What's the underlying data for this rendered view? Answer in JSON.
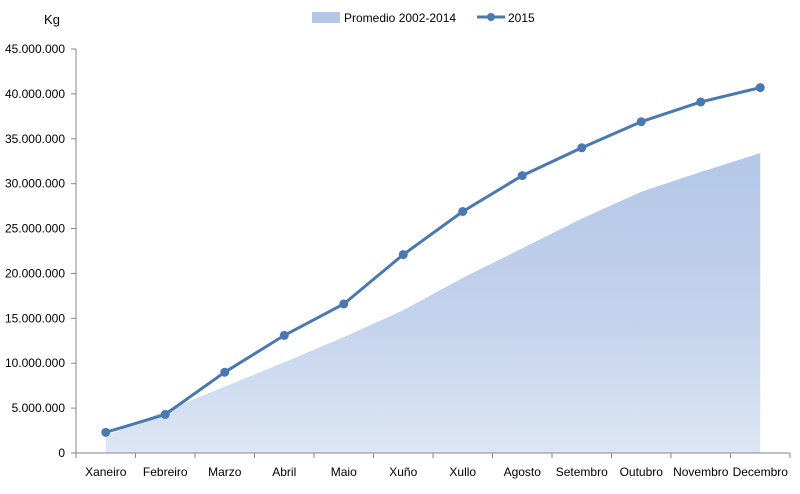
{
  "chart_data": {
    "type": "area",
    "ylabel": "Kg",
    "categories": [
      "Xaneiro",
      "Febreiro",
      "Marzo",
      "Abril",
      "Maio",
      "Xuño",
      "Xullo",
      "Agosto",
      "Setembro",
      "Outubro",
      "Novembro",
      "Decembro"
    ],
    "ylim": [
      0,
      45000000
    ],
    "yticks": [
      0,
      5000000,
      10000000,
      15000000,
      20000000,
      25000000,
      30000000,
      35000000,
      40000000,
      45000000
    ],
    "ytick_labels": [
      "0",
      "5.000.000",
      "10.000.000",
      "15.000.000",
      "20.000.000",
      "25.000.000",
      "30.000.000",
      "35.000.000",
      "40.000.000",
      "45.000.000"
    ],
    "series": [
      {
        "name": "Promedio 2002-2014",
        "type": "area",
        "color": "#b4c7e7",
        "values": [
          1900000,
          4700000,
          7400000,
          10100000,
          12900000,
          15900000,
          19500000,
          22800000,
          26100000,
          29100000,
          31300000,
          33400000
        ]
      },
      {
        "name": "2015",
        "type": "line",
        "color": "#4a78b0",
        "values": [
          2300000,
          4300000,
          9000000,
          13100000,
          16600000,
          22100000,
          26900000,
          30900000,
          34000000,
          36900000,
          39100000,
          40700000
        ]
      }
    ],
    "legend_position": "top-center",
    "grid": false
  }
}
